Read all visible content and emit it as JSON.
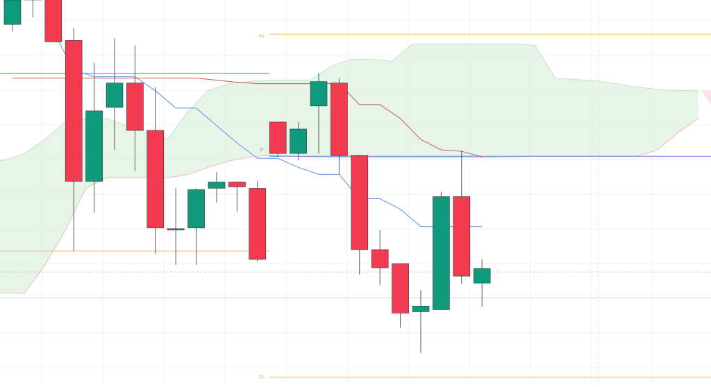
{
  "chart_data": {
    "type": "candlestick",
    "title": "",
    "xlabel": "",
    "ylabel": "",
    "ylim": [
      67,
      122
    ],
    "grid": true,
    "pivot_labels": {
      "r1": "R1",
      "p": "P",
      "s1": "S1"
    },
    "pivots": {
      "r1": 117.1,
      "p": 99.6,
      "s1": 67.9
    },
    "price_lines": [
      86.0,
      83.0
    ],
    "colors": {
      "up": "#0f9a7e",
      "down": "#f23b50",
      "pivot": "#4f7fe0",
      "r1": "#f7b863",
      "s1": "#f7b863",
      "conversion_line": "#5f8ee8",
      "base_line": "#c35a5a",
      "cloud_bull": "#dff1e2",
      "cloud_bear": "#ffd9dd",
      "dashed": "#c7c7c7",
      "dotted_teal": "#9fd3c0"
    },
    "candles": [
      {
        "o": 118.5,
        "h": 122.0,
        "l": 117.5,
        "c": 122.0
      },
      {
        "o": 122.2,
        "h": 123.0,
        "l": 119.5,
        "c": 122.2
      },
      {
        "o": 122.2,
        "h": 123.0,
        "l": 116.0,
        "c": 116.0
      },
      {
        "o": 116.2,
        "h": 118.0,
        "l": 86.0,
        "c": 96.0
      },
      {
        "o": 96.0,
        "h": 113.0,
        "l": 91.5,
        "c": 106.1
      },
      {
        "o": 106.6,
        "h": 116.5,
        "l": 100.5,
        "c": 110.1
      },
      {
        "o": 110.1,
        "h": 115.5,
        "l": 97.5,
        "c": 103.3
      },
      {
        "o": 103.3,
        "h": 109.5,
        "l": 85.6,
        "c": 89.3
      },
      {
        "o": 89.1,
        "h": 95.0,
        "l": 84.0,
        "c": 89.2
      },
      {
        "o": 89.3,
        "h": 95.0,
        "l": 84.0,
        "c": 94.8
      },
      {
        "o": 95.0,
        "h": 97.3,
        "l": 93.0,
        "c": 95.9
      },
      {
        "o": 95.9,
        "h": 96.0,
        "l": 91.7,
        "c": 95.2
      },
      {
        "o": 95.0,
        "h": 96.0,
        "l": 84.5,
        "c": 84.8
      },
      {
        "o": 104.5,
        "h": 104.5,
        "l": 99.5,
        "c": 100.0
      },
      {
        "o": 100.0,
        "h": 104.5,
        "l": 99.0,
        "c": 103.5
      },
      {
        "o": 106.8,
        "h": 111.5,
        "l": 100.0,
        "c": 110.3
      },
      {
        "o": 110.1,
        "h": 110.8,
        "l": 97.0,
        "c": 99.7
      },
      {
        "o": 99.7,
        "h": 99.8,
        "l": 82.6,
        "c": 86.2
      },
      {
        "o": 86.2,
        "h": 89.0,
        "l": 81.1,
        "c": 83.6
      },
      {
        "o": 84.2,
        "h": 84.2,
        "l": 75.0,
        "c": 77.1
      },
      {
        "o": 77.3,
        "h": 80.4,
        "l": 71.4,
        "c": 78.1
      },
      {
        "o": 77.6,
        "h": 94.5,
        "l": 77.6,
        "c": 93.8
      },
      {
        "o": 93.8,
        "h": 100.4,
        "l": 81.3,
        "c": 82.4
      },
      {
        "o": 81.4,
        "h": 84.8,
        "l": 78.0,
        "c": 83.5
      }
    ],
    "conversion_line": [
      {
        "i": 2,
        "v": 117.5
      },
      {
        "i": 3,
        "v": 112.0
      },
      {
        "i": 4,
        "v": 111.0
      },
      {
        "i": 5,
        "v": 111.0
      },
      {
        "i": 6,
        "v": 111.0
      },
      {
        "i": 7,
        "v": 109.0
      },
      {
        "i": 8,
        "v": 106.5
      },
      {
        "i": 9,
        "v": 106.5
      },
      {
        "i": 10,
        "v": 104.0
      },
      {
        "i": 11,
        "v": 101.5
      },
      {
        "i": 12,
        "v": 99.3
      },
      {
        "i": 13,
        "v": 99.3
      },
      {
        "i": 14,
        "v": 98.0
      },
      {
        "i": 15,
        "v": 97.0
      },
      {
        "i": 16,
        "v": 97.0
      },
      {
        "i": 17,
        "v": 93.5
      },
      {
        "i": 18,
        "v": 93.5
      },
      {
        "i": 19,
        "v": 92.0
      },
      {
        "i": 20,
        "v": 89.5
      },
      {
        "i": 21,
        "v": 89.5
      },
      {
        "i": 22,
        "v": 89.5
      },
      {
        "i": 23,
        "v": 89.5
      }
    ],
    "base_line": [
      {
        "i": 0,
        "v": 110.8
      },
      {
        "i": 1,
        "v": 110.8
      },
      {
        "i": 2,
        "v": 110.8
      },
      {
        "i": 3,
        "v": 110.8
      },
      {
        "i": 4,
        "v": 110.8
      },
      {
        "i": 5,
        "v": 110.8
      },
      {
        "i": 6,
        "v": 110.8
      },
      {
        "i": 7,
        "v": 110.8
      },
      {
        "i": 8,
        "v": 110.8
      },
      {
        "i": 9,
        "v": 110.8
      },
      {
        "i": 10,
        "v": 110.5
      },
      {
        "i": 11,
        "v": 110.2
      },
      {
        "i": 12,
        "v": 110.0
      },
      {
        "i": 13,
        "v": 110.0
      },
      {
        "i": 14,
        "v": 110.0
      },
      {
        "i": 15,
        "v": 110.0
      },
      {
        "i": 16,
        "v": 110.0
      },
      {
        "i": 17,
        "v": 107.0
      },
      {
        "i": 18,
        "v": 107.0
      },
      {
        "i": 19,
        "v": 105.0
      },
      {
        "i": 20,
        "v": 102.0
      },
      {
        "i": 21,
        "v": 100.5
      },
      {
        "i": 22,
        "v": 100.3
      },
      {
        "i": 23,
        "v": 99.5
      }
    ],
    "cloud_upper": [
      {
        "i": -1,
        "v": 99.0
      },
      {
        "i": 0,
        "v": 99.0
      },
      {
        "i": 1,
        "v": 100.0
      },
      {
        "i": 2,
        "v": 102.0
      },
      {
        "i": 3,
        "v": 104.5
      },
      {
        "i": 4,
        "v": 105.0
      },
      {
        "i": 5,
        "v": 105.0
      },
      {
        "i": 6,
        "v": 104.0
      },
      {
        "i": 7,
        "v": 103.0
      },
      {
        "i": 8,
        "v": 102.0
      },
      {
        "i": 9,
        "v": 106.0
      },
      {
        "i": 10,
        "v": 109.0
      },
      {
        "i": 11,
        "v": 110.0
      },
      {
        "i": 12,
        "v": 110.3
      },
      {
        "i": 13,
        "v": 110.5
      },
      {
        "i": 14,
        "v": 110.5
      },
      {
        "i": 15,
        "v": 110.5
      },
      {
        "i": 16,
        "v": 112.5
      },
      {
        "i": 17,
        "v": 113.5
      },
      {
        "i": 18,
        "v": 113.5
      },
      {
        "i": 19,
        "v": 113.2
      },
      {
        "i": 20,
        "v": 115.7
      },
      {
        "i": 21,
        "v": 115.7
      },
      {
        "i": 22,
        "v": 115.7
      },
      {
        "i": 23,
        "v": 115.7
      },
      {
        "i": 24,
        "v": 115.7
      },
      {
        "i": 25,
        "v": 115.7
      },
      {
        "i": 26,
        "v": 115.5
      },
      {
        "i": 27,
        "v": 110.8
      },
      {
        "i": 28,
        "v": 110.6
      },
      {
        "i": 29,
        "v": 110.4
      },
      {
        "i": 30,
        "v": 110.0
      },
      {
        "i": 31,
        "v": 109.5
      },
      {
        "i": 32,
        "v": 109.2
      },
      {
        "i": 33,
        "v": 109.0
      },
      {
        "i": 34,
        "v": 109.0
      }
    ],
    "cloud_lower": [
      {
        "i": -1,
        "v": 80.0
      },
      {
        "i": 0,
        "v": 80.0
      },
      {
        "i": 1,
        "v": 80.0
      },
      {
        "i": 2,
        "v": 84.0
      },
      {
        "i": 3,
        "v": 89.0
      },
      {
        "i": 4,
        "v": 95.0
      },
      {
        "i": 5,
        "v": 96.5
      },
      {
        "i": 6,
        "v": 96.5
      },
      {
        "i": 7,
        "v": 96.5
      },
      {
        "i": 8,
        "v": 96.5
      },
      {
        "i": 9,
        "v": 97.0
      },
      {
        "i": 10,
        "v": 98.0
      },
      {
        "i": 11,
        "v": 98.9
      },
      {
        "i": 12,
        "v": 99.5
      },
      {
        "i": 13,
        "v": 99.7
      },
      {
        "i": 14,
        "v": 99.6
      },
      {
        "i": 15,
        "v": 99.5
      },
      {
        "i": 16,
        "v": 99.4
      },
      {
        "i": 17,
        "v": 99.4
      },
      {
        "i": 18,
        "v": 99.4
      },
      {
        "i": 19,
        "v": 99.4
      },
      {
        "i": 20,
        "v": 99.4
      },
      {
        "i": 21,
        "v": 99.4
      },
      {
        "i": 22,
        "v": 99.4
      },
      {
        "i": 23,
        "v": 99.4
      },
      {
        "i": 24,
        "v": 99.4
      },
      {
        "i": 25,
        "v": 99.5
      },
      {
        "i": 26,
        "v": 99.6
      },
      {
        "i": 27,
        "v": 99.6
      },
      {
        "i": 28,
        "v": 99.6
      },
      {
        "i": 29,
        "v": 99.6
      },
      {
        "i": 30,
        "v": 99.6
      },
      {
        "i": 31,
        "v": 99.6
      },
      {
        "i": 32,
        "v": 100.5
      },
      {
        "i": 33,
        "v": 103.0
      },
      {
        "i": 34,
        "v": 105.0
      }
    ]
  }
}
